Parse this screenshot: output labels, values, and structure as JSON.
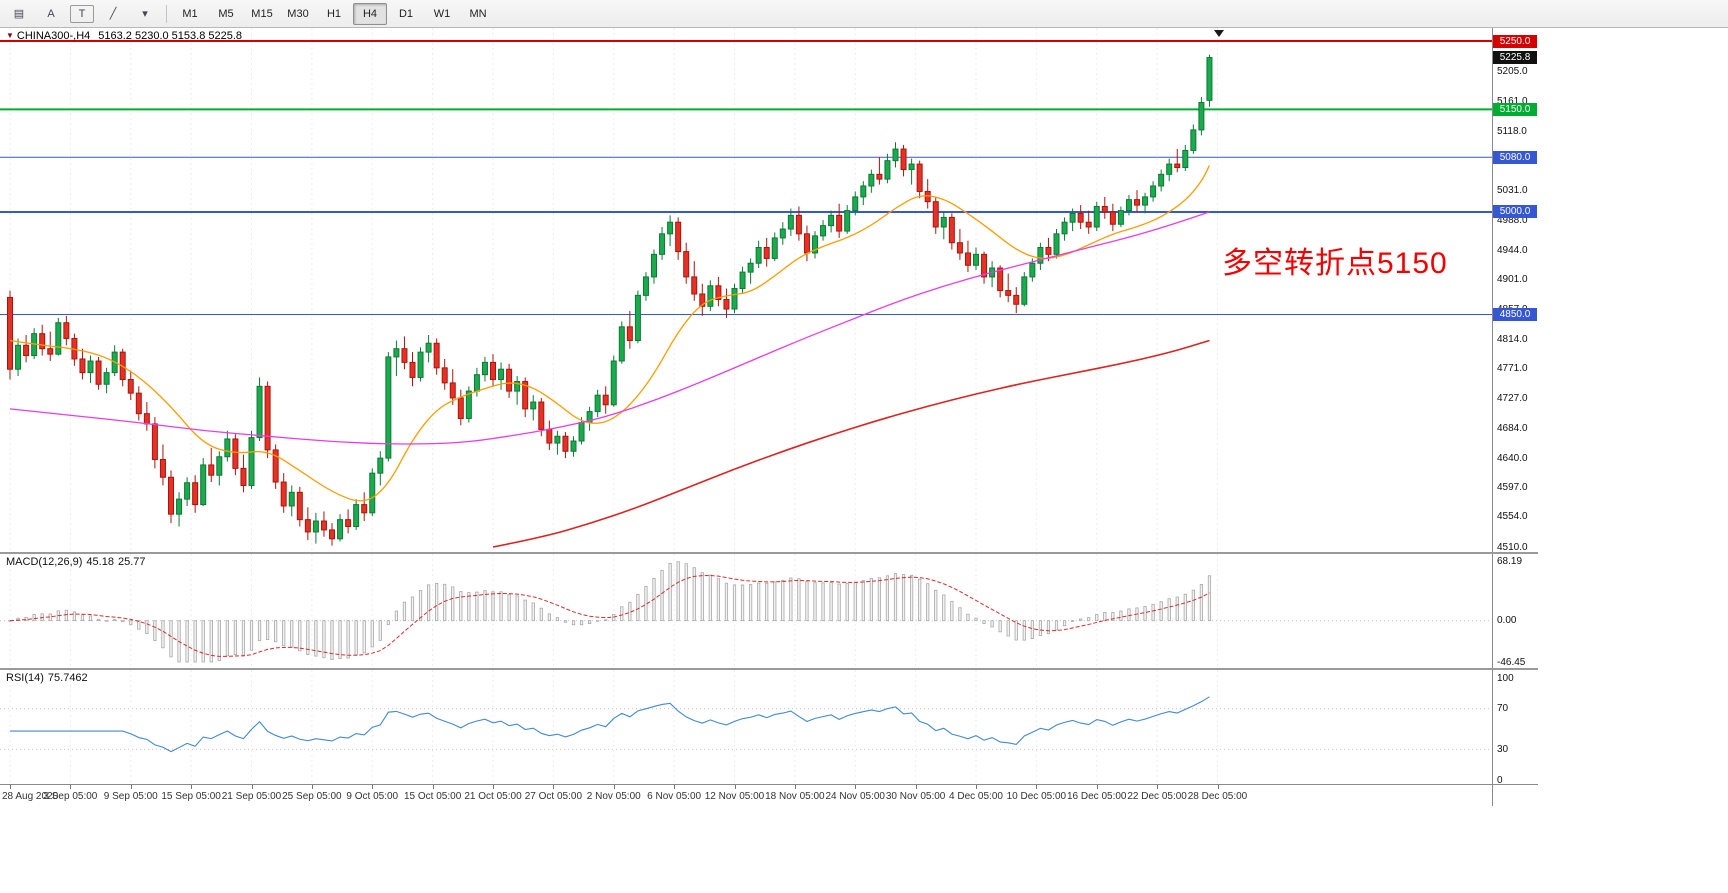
{
  "toolbar": {
    "icons": [
      {
        "name": "new-order-icon",
        "glyph": "▤"
      },
      {
        "name": "cursor-tool-icon",
        "glyph": "A"
      },
      {
        "name": "text-tool-icon",
        "glyph": "T"
      },
      {
        "name": "draw-line-tool-icon",
        "glyph": "╱"
      },
      {
        "name": "draw-tool-caret-icon",
        "glyph": "▾"
      }
    ],
    "timeframes": [
      "M1",
      "M5",
      "M15",
      "M30",
      "H1",
      "H4",
      "D1",
      "W1",
      "MN"
    ],
    "active_timeframe": "H4"
  },
  "chart_data": {
    "type": "candlestick",
    "symbol": "CHINA300-,H4",
    "ohlc_text": "5163.2 5230.0 5153.8 5225.8",
    "current_price": 5225.8,
    "current_price_badge_color": "#111111",
    "y_range": [
      4510,
      5250
    ],
    "price_axis_labels": [
      "5205.0",
      "5161.0",
      "5118.0",
      "5074.0",
      "5031.0",
      "4988.0",
      "4944.0",
      "4901.0",
      "4857.0",
      "4814.0",
      "4771.0",
      "4727.0",
      "4684.0",
      "4640.0",
      "4597.0",
      "4554.0",
      "4510.0"
    ],
    "time_labels": [
      "28 Aug 2020",
      "3 Sep 05:00",
      "9 Sep 05:00",
      "15 Sep 05:00",
      "21 Sep 05:00",
      "25 Sep 05:00",
      "9 Oct 05:00",
      "15 Oct 05:00",
      "21 Oct 05:00",
      "27 Oct 05:00",
      "2 Nov 05:00",
      "6 Nov 05:00",
      "12 Nov 05:00",
      "18 Nov 05:00",
      "24 Nov 05:00",
      "30 Nov 05:00",
      "4 Dec 05:00",
      "10 Dec 05:00",
      "16 Dec 05:00",
      "22 Dec 05:00",
      "28 Dec 05:00"
    ],
    "candles_per_label": 7.5,
    "annotation": {
      "text": "多空转折点5150",
      "color": "#f20000"
    },
    "hlines": [
      {
        "price": 5250.0,
        "label": "5250.0",
        "color": "#d40000",
        "width": 2
      },
      {
        "price": 5150.0,
        "label": "5150.0",
        "color": "#00ad32",
        "width": 2
      },
      {
        "price": 5080.0,
        "label": "5080.0",
        "color": "#3558d2",
        "width": 1
      },
      {
        "price": 5000.0,
        "label": "5000.0",
        "color": "#3558d2",
        "width": 2
      },
      {
        "price": 4850.0,
        "label": "4850.0",
        "color": "#3558d2",
        "width": 1
      }
    ],
    "colors": {
      "bull_fill": "#1caa4e",
      "bull_stroke": "#0c7a35",
      "bear_fill": "#e63226",
      "bear_stroke": "#aa150b",
      "grid": "#ededed",
      "ma_fast": "#ff9c00",
      "ma_mid": "#e83ce8",
      "ma_slow": "#dd2222",
      "macd_hist_fill": "#f2f2f2",
      "macd_hist_stroke": "#a8a8a8",
      "macd_signal": "#d32f2f",
      "rsi_line": "#4189d6",
      "level_dotted": "#c6c6c6"
    },
    "candles": [
      [
        4875,
        4885,
        4755,
        4770
      ],
      [
        4770,
        4815,
        4760,
        4805
      ],
      [
        4805,
        4820,
        4780,
        4790
      ],
      [
        4790,
        4830,
        4785,
        4822
      ],
      [
        4822,
        4835,
        4790,
        4800
      ],
      [
        4800,
        4825,
        4782,
        4792
      ],
      [
        4792,
        4845,
        4790,
        4838
      ],
      [
        4838,
        4848,
        4805,
        4815
      ],
      [
        4815,
        4822,
        4775,
        4785
      ],
      [
        4785,
        4800,
        4755,
        4765
      ],
      [
        4765,
        4790,
        4750,
        4782
      ],
      [
        4782,
        4788,
        4740,
        4748
      ],
      [
        4748,
        4772,
        4735,
        4765
      ],
      [
        4765,
        4805,
        4760,
        4795
      ],
      [
        4795,
        4800,
        4745,
        4755
      ],
      [
        4755,
        4768,
        4725,
        4735
      ],
      [
        4735,
        4745,
        4695,
        4705
      ],
      [
        4705,
        4722,
        4680,
        4690
      ],
      [
        4690,
        4700,
        4625,
        4638
      ],
      [
        4638,
        4660,
        4600,
        4612
      ],
      [
        4612,
        4622,
        4545,
        4558
      ],
      [
        4558,
        4590,
        4540,
        4580
      ],
      [
        4580,
        4612,
        4570,
        4604
      ],
      [
        4604,
        4615,
        4560,
        4572
      ],
      [
        4572,
        4640,
        4570,
        4630
      ],
      [
        4630,
        4655,
        4605,
        4615
      ],
      [
        4615,
        4650,
        4600,
        4642
      ],
      [
        4642,
        4680,
        4635,
        4668
      ],
      [
        4668,
        4675,
        4615,
        4625
      ],
      [
        4625,
        4645,
        4590,
        4600
      ],
      [
        4600,
        4680,
        4595,
        4670
      ],
      [
        4670,
        4758,
        4665,
        4745
      ],
      [
        4745,
        4752,
        4640,
        4652
      ],
      [
        4652,
        4660,
        4595,
        4605
      ],
      [
        4605,
        4618,
        4560,
        4570
      ],
      [
        4570,
        4600,
        4555,
        4590
      ],
      [
        4590,
        4598,
        4540,
        4550
      ],
      [
        4550,
        4568,
        4520,
        4532
      ],
      [
        4532,
        4560,
        4515,
        4548
      ],
      [
        4548,
        4562,
        4525,
        4535
      ],
      [
        4535,
        4545,
        4512,
        4522
      ],
      [
        4522,
        4558,
        4518,
        4550
      ],
      [
        4550,
        4565,
        4530,
        4540
      ],
      [
        4540,
        4580,
        4535,
        4572
      ],
      [
        4572,
        4590,
        4548,
        4560
      ],
      [
        4560,
        4625,
        4555,
        4618
      ],
      [
        4618,
        4650,
        4600,
        4640
      ],
      [
        4640,
        4795,
        4635,
        4788
      ],
      [
        4788,
        4812,
        4760,
        4800
      ],
      [
        4800,
        4818,
        4770,
        4780
      ],
      [
        4780,
        4795,
        4745,
        4758
      ],
      [
        4758,
        4802,
        4752,
        4795
      ],
      [
        4795,
        4820,
        4780,
        4808
      ],
      [
        4808,
        4815,
        4762,
        4772
      ],
      [
        4772,
        4785,
        4740,
        4750
      ],
      [
        4750,
        4770,
        4718,
        4728
      ],
      [
        4728,
        4740,
        4688,
        4698
      ],
      [
        4698,
        4745,
        4692,
        4738
      ],
      [
        4738,
        4772,
        4730,
        4762
      ],
      [
        4762,
        4788,
        4752,
        4780
      ],
      [
        4780,
        4792,
        4745,
        4755
      ],
      [
        4755,
        4780,
        4740,
        4770
      ],
      [
        4770,
        4778,
        4728,
        4738
      ],
      [
        4738,
        4760,
        4718,
        4752
      ],
      [
        4752,
        4758,
        4700,
        4712
      ],
      [
        4712,
        4732,
        4695,
        4722
      ],
      [
        4722,
        4728,
        4672,
        4682
      ],
      [
        4682,
        4695,
        4652,
        4662
      ],
      [
        4662,
        4680,
        4645,
        4672
      ],
      [
        4672,
        4678,
        4640,
        4650
      ],
      [
        4650,
        4672,
        4642,
        4665
      ],
      [
        4665,
        4700,
        4660,
        4692
      ],
      [
        4692,
        4715,
        4680,
        4708
      ],
      [
        4708,
        4740,
        4700,
        4732
      ],
      [
        4732,
        4745,
        4705,
        4718
      ],
      [
        4718,
        4790,
        4715,
        4782
      ],
      [
        4782,
        4840,
        4778,
        4832
      ],
      [
        4832,
        4855,
        4800,
        4812
      ],
      [
        4812,
        4885,
        4808,
        4878
      ],
      [
        4878,
        4912,
        4870,
        4905
      ],
      [
        4905,
        4945,
        4895,
        4938
      ],
      [
        4938,
        4978,
        4930,
        4968
      ],
      [
        4968,
        4995,
        4950,
        4985
      ],
      [
        4985,
        4992,
        4930,
        4942
      ],
      [
        4942,
        4955,
        4895,
        4905
      ],
      [
        4905,
        4928,
        4870,
        4880
      ],
      [
        4880,
        4895,
        4848,
        4862
      ],
      [
        4862,
        4900,
        4855,
        4892
      ],
      [
        4892,
        4905,
        4862,
        4872
      ],
      [
        4872,
        4888,
        4845,
        4858
      ],
      [
        4858,
        4895,
        4852,
        4888
      ],
      [
        4888,
        4920,
        4880,
        4912
      ],
      [
        4912,
        4932,
        4895,
        4925
      ],
      [
        4925,
        4958,
        4918,
        4948
      ],
      [
        4948,
        4962,
        4920,
        4932
      ],
      [
        4932,
        4970,
        4928,
        4962
      ],
      [
        4962,
        4985,
        4952,
        4975
      ],
      [
        4975,
        5005,
        4965,
        4995
      ],
      [
        4995,
        5008,
        4958,
        4968
      ],
      [
        4968,
        4980,
        4928,
        4940
      ],
      [
        4940,
        4972,
        4932,
        4965
      ],
      [
        4965,
        4988,
        4958,
        4980
      ],
      [
        4980,
        5002,
        4970,
        4995
      ],
      [
        4995,
        5012,
        4962,
        4972
      ],
      [
        4972,
        5010,
        4968,
        5002
      ],
      [
        5002,
        5030,
        4995,
        5022
      ],
      [
        5022,
        5045,
        5010,
        5038
      ],
      [
        5038,
        5062,
        5028,
        5055
      ],
      [
        5055,
        5080,
        5040,
        5048
      ],
      [
        5048,
        5085,
        5042,
        5075
      ],
      [
        5075,
        5102,
        5065,
        5092
      ],
      [
        5092,
        5098,
        5052,
        5062
      ],
      [
        5062,
        5078,
        5040,
        5070
      ],
      [
        5070,
        5075,
        5020,
        5030
      ],
      [
        5030,
        5048,
        5005,
        5015
      ],
      [
        5015,
        5022,
        4968,
        4978
      ],
      [
        4978,
        5000,
        4960,
        4992
      ],
      [
        4992,
        4998,
        4945,
        4955
      ],
      [
        4955,
        4975,
        4930,
        4940
      ],
      [
        4940,
        4958,
        4912,
        4922
      ],
      [
        4922,
        4948,
        4915,
        4938
      ],
      [
        4938,
        4942,
        4895,
        4905
      ],
      [
        4905,
        4928,
        4890,
        4918
      ],
      [
        4918,
        4922,
        4875,
        4885
      ],
      [
        4885,
        4910,
        4868,
        4878
      ],
      [
        4878,
        4890,
        4852,
        4865
      ],
      [
        4865,
        4912,
        4862,
        4905
      ],
      [
        4905,
        4932,
        4898,
        4925
      ],
      [
        4925,
        4955,
        4915,
        4948
      ],
      [
        4948,
        4962,
        4928,
        4938
      ],
      [
        4938,
        4975,
        4932,
        4968
      ],
      [
        4968,
        4992,
        4958,
        4985
      ],
      [
        4985,
        5005,
        4972,
        4998
      ],
      [
        4998,
        5010,
        4975,
        4985
      ],
      [
        4985,
        5002,
        4968,
        4978
      ],
      [
        4978,
        5015,
        4972,
        5008
      ],
      [
        5008,
        5022,
        4990,
        5000
      ],
      [
        5000,
        5012,
        4972,
        4982
      ],
      [
        4982,
        5008,
        4978,
        5002
      ],
      [
        5002,
        5025,
        4995,
        5018
      ],
      [
        5018,
        5032,
        5000,
        5010
      ],
      [
        5010,
        5028,
        4998,
        5022
      ],
      [
        5022,
        5045,
        5015,
        5038
      ],
      [
        5038,
        5062,
        5030,
        5055
      ],
      [
        5055,
        5078,
        5045,
        5070
      ],
      [
        5070,
        5092,
        5058,
        5065
      ],
      [
        5065,
        5098,
        5060,
        5090
      ],
      [
        5090,
        5128,
        5085,
        5120
      ],
      [
        5120,
        5168,
        5112,
        5160
      ],
      [
        5163.2,
        5230,
        5153.8,
        5225.8
      ]
    ],
    "moving_averages": [
      {
        "name": "fast-ma",
        "color": "#ff9c00",
        "width": 1.3,
        "points": [
          [
            0,
            4812
          ],
          [
            4,
            4805
          ],
          [
            8,
            4800
          ],
          [
            12,
            4788
          ],
          [
            16,
            4760
          ],
          [
            20,
            4716
          ],
          [
            24,
            4660
          ],
          [
            28,
            4646
          ],
          [
            32,
            4652
          ],
          [
            36,
            4622
          ],
          [
            40,
            4590
          ],
          [
            44,
            4572
          ],
          [
            47,
            4600
          ],
          [
            50,
            4668
          ],
          [
            53,
            4712
          ],
          [
            56,
            4730
          ],
          [
            59,
            4742
          ],
          [
            62,
            4752
          ],
          [
            65,
            4744
          ],
          [
            68,
            4720
          ],
          [
            71,
            4692
          ],
          [
            74,
            4690
          ],
          [
            77,
            4716
          ],
          [
            80,
            4762
          ],
          [
            83,
            4826
          ],
          [
            86,
            4868
          ],
          [
            89,
            4878
          ],
          [
            92,
            4882
          ],
          [
            95,
            4906
          ],
          [
            98,
            4934
          ],
          [
            101,
            4950
          ],
          [
            104,
            4962
          ],
          [
            107,
            4980
          ],
          [
            110,
            5006
          ],
          [
            113,
            5026
          ],
          [
            116,
            5020
          ],
          [
            119,
            4998
          ],
          [
            122,
            4972
          ],
          [
            125,
            4944
          ],
          [
            128,
            4930
          ],
          [
            131,
            4936
          ],
          [
            134,
            4952
          ],
          [
            137,
            4968
          ],
          [
            140,
            4978
          ],
          [
            143,
            4992
          ],
          [
            146,
            5016
          ],
          [
            148,
            5044
          ],
          [
            149,
            5068
          ]
        ]
      },
      {
        "name": "mid-ma",
        "color": "#e83ce8",
        "width": 1.3,
        "points": [
          [
            0,
            4712
          ],
          [
            8,
            4702
          ],
          [
            16,
            4692
          ],
          [
            24,
            4680
          ],
          [
            32,
            4672
          ],
          [
            40,
            4664
          ],
          [
            48,
            4660
          ],
          [
            56,
            4662
          ],
          [
            62,
            4672
          ],
          [
            68,
            4684
          ],
          [
            74,
            4700
          ],
          [
            80,
            4724
          ],
          [
            86,
            4752
          ],
          [
            92,
            4782
          ],
          [
            98,
            4812
          ],
          [
            104,
            4840
          ],
          [
            110,
            4868
          ],
          [
            116,
            4892
          ],
          [
            122,
            4912
          ],
          [
            128,
            4930
          ],
          [
            134,
            4948
          ],
          [
            140,
            4966
          ],
          [
            145,
            4984
          ],
          [
            149,
            5000
          ]
        ]
      },
      {
        "name": "slow-ma",
        "color": "#dd2222",
        "width": 1.6,
        "points": [
          [
            60,
            4510
          ],
          [
            66,
            4524
          ],
          [
            72,
            4544
          ],
          [
            78,
            4568
          ],
          [
            84,
            4596
          ],
          [
            90,
            4624
          ],
          [
            96,
            4650
          ],
          [
            102,
            4674
          ],
          [
            108,
            4696
          ],
          [
            114,
            4716
          ],
          [
            120,
            4734
          ],
          [
            126,
            4750
          ],
          [
            132,
            4764
          ],
          [
            138,
            4778
          ],
          [
            144,
            4794
          ],
          [
            149,
            4812
          ]
        ]
      }
    ],
    "macd": {
      "label": "MACD(12,26,9)",
      "main_value": "45.18",
      "signal_value": "25.77",
      "fast": 12,
      "slow": 26,
      "signal": 9,
      "scale_max": "68.19",
      "scale_zero": "0.00",
      "scale_min": "-46.45"
    },
    "rsi": {
      "label": "RSI(14)",
      "value": "75.7462",
      "period": 14,
      "scale_labels": [
        "100",
        "70",
        "30",
        "0"
      ],
      "scale_values": [
        100,
        70,
        30,
        0
      ],
      "levels": [
        70,
        30
      ]
    }
  }
}
